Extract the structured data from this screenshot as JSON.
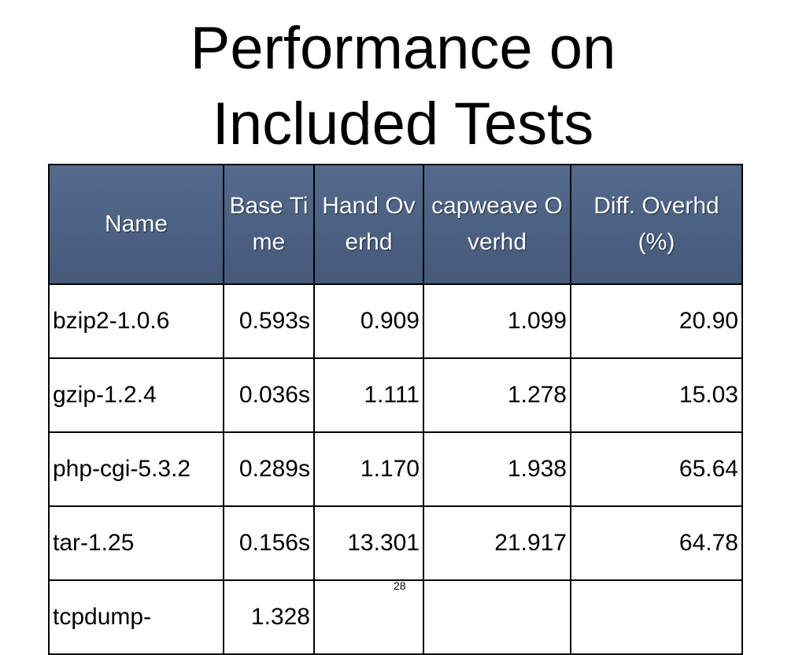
{
  "header": {
    "title": [
      "Performance on",
      "Included Tests"
    ]
  },
  "table": {
    "columns": [
      "Name",
      "Base Time",
      "Hand Overhd",
      "capweave Overhd",
      "Diff. Overhd (%)"
    ],
    "rows": [
      [
        "bzip2-1.0.6",
        "0.593s",
        "0.909",
        "1.099",
        "20.90"
      ],
      [
        "gzip-1.2.4",
        "0.036s",
        "1.111",
        "1.278",
        "15.03"
      ],
      [
        "php-cgi-5.3.2",
        "0.289s",
        "1.170",
        "1.938",
        "65.64"
      ],
      [
        "tar-1.25",
        "0.156s",
        "13.301",
        "21.917",
        "64.78"
      ],
      [
        "tcpdump-",
        "1.328"
      ]
    ]
  },
  "footer": {
    "page": "28"
  }
}
